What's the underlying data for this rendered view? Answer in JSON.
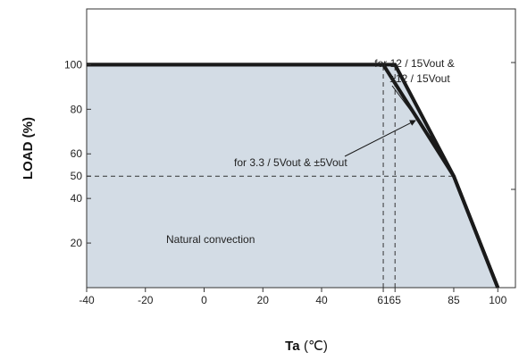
{
  "chart_data": {
    "type": "line",
    "xlabel": "Ta",
    "xlabel_unit": "(℃)",
    "ylabel": "LOAD (%)",
    "xlim": [
      -40,
      106
    ],
    "ylim": [
      0,
      125
    ],
    "x_ticks": [
      -40,
      -20,
      0,
      20,
      40,
      61,
      65,
      85,
      100
    ],
    "x_tick_labels": [
      "-40",
      "-20",
      "0",
      "20",
      "40",
      "61",
      "65",
      "85",
      "100"
    ],
    "y_ticks": [
      20,
      40,
      50,
      60,
      80,
      100
    ],
    "y_tick_labels": [
      "20",
      "40",
      "50",
      "60",
      "80",
      "100"
    ],
    "grid": false,
    "series": [
      {
        "x": [
          -40,
          65,
          85,
          100
        ],
        "y": [
          100,
          100,
          50,
          0
        ]
      },
      {
        "x": [
          -40,
          61,
          85,
          100
        ],
        "y": [
          100,
          100,
          50,
          0
        ]
      }
    ],
    "reference_lines": [
      {
        "orientation": "vertical",
        "x": 61,
        "y_from": 0,
        "y_to": 100
      },
      {
        "orientation": "vertical",
        "x": 65,
        "y_from": 0,
        "y_to": 100
      },
      {
        "orientation": "horizontal",
        "y": 50,
        "x_from": -40,
        "x_to": 85
      }
    ],
    "annotations": [
      {
        "lines": [
          "for 12 / 15Vout  &",
          "±12 / 15Vout"
        ],
        "target_series": 0,
        "target_x": 78,
        "target_y": 66
      },
      {
        "lines": [
          "for 3.3 / 5Vout  & ±5Vout"
        ],
        "target_series": 1,
        "target_x": 72,
        "target_y": 75
      },
      {
        "lines": [
          "Natural convection"
        ]
      }
    ],
    "region_fill": "#d3dce5",
    "line_color": "#1a1a1a"
  }
}
